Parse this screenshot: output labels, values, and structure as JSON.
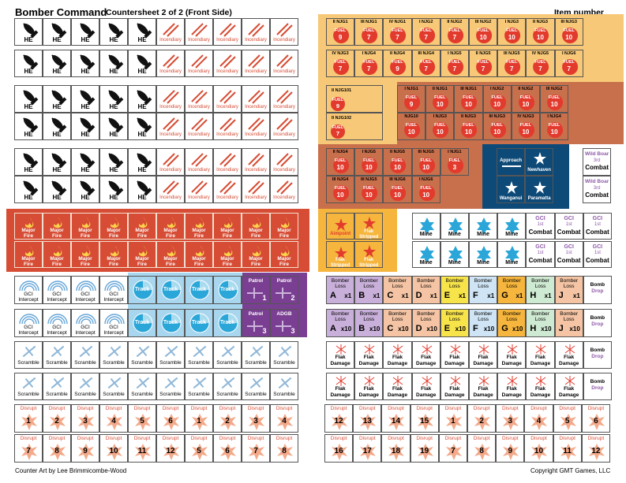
{
  "header": {
    "title": "Bomber Command",
    "subtitle": "Countersheet  2 of 2  (Front Side)",
    "item_number": "Item number"
  },
  "footer": {
    "credit": "Counter Art by Lee Brimmicombe-Wood",
    "copyright": "Copyright GMT Games, LLC"
  },
  "colors": {
    "orange_band": "#f7c877",
    "rust_band": "#c8704c",
    "navy_band": "#0e4a78",
    "red_band": "#d64c34",
    "light_blue_band": "#a8d6ee",
    "purple_band": "#7a3f92",
    "flak_orange": "#f6b53c",
    "fuel_red": "#e23b2e",
    "mine_cyan": "#2aa6d8",
    "gci_purple": "#8e5aa8",
    "disrupt_pink": "#f3a98a"
  },
  "left": {
    "bomb_rows": [
      [
        {
          "t": "he",
          "label": "HE"
        },
        {
          "t": "he",
          "label": "HE"
        },
        {
          "t": "he",
          "label": "HE"
        },
        {
          "t": "he",
          "label": "HE"
        },
        {
          "t": "he",
          "label": "HE"
        },
        {
          "t": "inc",
          "label": "Incendiary"
        },
        {
          "t": "inc",
          "label": "Incendiary"
        },
        {
          "t": "inc",
          "label": "Incendiary"
        },
        {
          "t": "inc",
          "label": "Incendiary"
        },
        {
          "t": "inc",
          "label": "Incendiary"
        }
      ],
      [
        {
          "t": "he",
          "label": "HE"
        },
        {
          "t": "he",
          "label": "HE"
        },
        {
          "t": "he",
          "label": "HE"
        },
        {
          "t": "he",
          "label": "HE"
        },
        {
          "t": "he",
          "label": "HE"
        },
        {
          "t": "inc",
          "label": "Incendiary"
        },
        {
          "t": "inc",
          "label": "Incendiary"
        },
        {
          "t": "inc",
          "label": "Incendiary"
        },
        {
          "t": "inc",
          "label": "Incendiary"
        },
        {
          "t": "inc",
          "label": "Incendiary"
        }
      ],
      [
        {
          "t": "he",
          "label": "HE"
        },
        {
          "t": "he",
          "label": "HE"
        },
        {
          "t": "he",
          "label": "HE"
        },
        {
          "t": "he",
          "label": "HE"
        },
        {
          "t": "he",
          "label": "HE"
        },
        {
          "t": "inc",
          "label": "Incendiary"
        },
        {
          "t": "inc",
          "label": "Incendiary"
        },
        {
          "t": "inc",
          "label": "Incendiary"
        },
        {
          "t": "inc",
          "label": "Incendiary"
        },
        {
          "t": "inc",
          "label": "Incendiary"
        }
      ],
      [
        {
          "t": "he",
          "label": "HE"
        },
        {
          "t": "he",
          "label": "HE"
        },
        {
          "t": "he",
          "label": "HE"
        },
        {
          "t": "he",
          "label": "HE"
        },
        {
          "t": "he",
          "label": "HE"
        },
        {
          "t": "inc",
          "label": "Incendiary"
        },
        {
          "t": "inc",
          "label": "Incendiary"
        },
        {
          "t": "inc",
          "label": "Incendiary"
        },
        {
          "t": "inc",
          "label": "Incendiary"
        },
        {
          "t": "inc",
          "label": "Incendiary"
        }
      ],
      [
        {
          "t": "he",
          "label": "HE"
        },
        {
          "t": "he",
          "label": "HE"
        },
        {
          "t": "he",
          "label": "HE"
        },
        {
          "t": "he",
          "label": "HE"
        },
        {
          "t": "he",
          "label": "HE"
        },
        {
          "t": "inc",
          "label": "Incendiary"
        },
        {
          "t": "inc",
          "label": "Incendiary"
        },
        {
          "t": "inc",
          "label": "Incendiary"
        },
        {
          "t": "inc",
          "label": "Incendiary"
        },
        {
          "t": "inc",
          "label": "Incendiary"
        }
      ],
      [
        {
          "t": "he",
          "label": "HE"
        },
        {
          "t": "he",
          "label": "HE"
        },
        {
          "t": "he",
          "label": "HE"
        },
        {
          "t": "he",
          "label": "HE"
        },
        {
          "t": "he",
          "label": "HE"
        },
        {
          "t": "inc",
          "label": "Incendiary"
        },
        {
          "t": "inc",
          "label": "Incendiary"
        },
        {
          "t": "inc",
          "label": "Incendiary"
        },
        {
          "t": "inc",
          "label": "Incendiary"
        },
        {
          "t": "inc",
          "label": "Incendiary"
        }
      ]
    ],
    "fire_label": [
      "Major",
      "Fire"
    ],
    "gci_row1": [
      "GCI",
      "Intercept"
    ],
    "gci_row2": [
      "GCI",
      "Intercept"
    ],
    "track_label": "Track",
    "patrols": [
      {
        "label": "Patrol",
        "num": "1"
      },
      {
        "label": "Patrol",
        "num": "2"
      },
      {
        "label": "Patrol",
        "num": "3"
      },
      {
        "label": "ADGB",
        "num": "3"
      }
    ],
    "scramble_label": "Scramble",
    "disrupt_label": "Disrupt",
    "disrupt_row1": [
      "1",
      "2",
      "3",
      "4",
      "5",
      "6",
      "1",
      "2",
      "3",
      "4"
    ],
    "disrupt_row2": [
      "7",
      "8",
      "9",
      "10",
      "11",
      "12",
      "5",
      "6",
      "7",
      "8"
    ]
  },
  "right": {
    "njg_row1": [
      {
        "unit": "II NJG1",
        "fuel": "9"
      },
      {
        "unit": "III NJG1",
        "fuel": "7"
      },
      {
        "unit": "IV NJG1",
        "fuel": "7"
      },
      {
        "unit": "I NJG2",
        "fuel": "7"
      },
      {
        "unit": "II NJG2",
        "fuel": "7"
      },
      {
        "unit": "III NJG2",
        "fuel": "10"
      },
      {
        "unit": "I NJG3",
        "fuel": "10"
      },
      {
        "unit": "II NJG3",
        "fuel": "10"
      },
      {
        "unit": "III NJG3",
        "fuel": "10"
      }
    ],
    "njg_row2": [
      {
        "unit": "IV NJG3",
        "fuel": "7"
      },
      {
        "unit": "I NJG4",
        "fuel": "7"
      },
      {
        "unit": "II NJG4",
        "fuel": "9"
      },
      {
        "unit": "III NJG4",
        "fuel": "7"
      },
      {
        "unit": "I NJG5",
        "fuel": "7"
      },
      {
        "unit": "II NJG5",
        "fuel": "7"
      },
      {
        "unit": "III NJG5",
        "fuel": "7"
      },
      {
        "unit": "IV NJG5",
        "fuel": "7"
      },
      {
        "unit": "I NJG6",
        "fuel": "7"
      }
    ],
    "njg_row3": [
      {
        "unit": "II NJG101",
        "fuel": "9",
        "big": true
      },
      {
        "unit": "I NJG1",
        "fuel": "9"
      },
      {
        "unit": "II NJG1",
        "fuel": "10"
      },
      {
        "unit": "III NJG1",
        "fuel": "10"
      },
      {
        "unit": "I NJG2",
        "fuel": "10"
      },
      {
        "unit": "II NJG2",
        "fuel": "10"
      },
      {
        "unit": "III NJG2",
        "fuel": "10"
      }
    ],
    "njg_row4": [
      {
        "unit": "II NJG102",
        "fuel": "7",
        "big": true
      },
      {
        "unit": "NJG10",
        "fuel": "10"
      },
      {
        "unit": "I NJG3",
        "fuel": "10"
      },
      {
        "unit": "II NJG3",
        "fuel": "10"
      },
      {
        "unit": "III NJG3",
        "fuel": "10"
      },
      {
        "unit": "IV NJG3",
        "fuel": "10"
      },
      {
        "unit": "I NJG4",
        "fuel": "10"
      }
    ],
    "njg_row5": [
      {
        "unit": "II NJG4",
        "fuel": "10"
      },
      {
        "unit": "I NJG5",
        "fuel": "10"
      },
      {
        "unit": "II NJG5",
        "fuel": "10"
      },
      {
        "unit": "III NJG5",
        "fuel": "10"
      },
      {
        "unit": "I NJG1",
        "fuel": "3"
      }
    ],
    "njg_row6": [
      {
        "unit": "III NJG4",
        "fuel": "10"
      },
      {
        "unit": "III NJG5",
        "fuel": "10"
      },
      {
        "unit": "III NJG6",
        "fuel": "10"
      },
      {
        "unit": "I NJG6",
        "fuel": "10"
      }
    ],
    "fuel_label": "FUEL",
    "navy": {
      "approach": "Approach",
      "newhaven": "Newhaven",
      "wanganui": "Wanganui",
      "paramatta": "Paramatta"
    },
    "wild_boar": {
      "title": "Wild Boar",
      "sub": "3rd",
      "combat": "Combat"
    },
    "aimpoint": "Aimpoint",
    "flak_stripped": [
      "Flak",
      "Stripped"
    ],
    "mine_label": "Mine",
    "gci_combat": {
      "title": "GCI",
      "sub": "1st",
      "combat": "Combat"
    },
    "bomber_loss_label": [
      "Bomber",
      "Loss"
    ],
    "loss_letters": [
      "A",
      "B",
      "C",
      "D",
      "E",
      "F",
      "G",
      "H",
      "J"
    ],
    "loss_x1": "x1",
    "loss_x10": "x10",
    "loss_colors": [
      "#c9b0da",
      "#c9b0da",
      "#f4c4a4",
      "#f4c4a4",
      "#f7e34a",
      "#cfe4f4",
      "#f6b53c",
      "#cfead2",
      "#f4c4a4"
    ],
    "bomb_drop": [
      "Bomb",
      "Drop"
    ],
    "flak_damage": [
      "Flak",
      "Damage"
    ],
    "disrupt_row1": [
      "12",
      "13",
      "14",
      "15",
      "1",
      "2",
      "3",
      "4",
      "5",
      "6"
    ],
    "disrupt_row2": [
      "16",
      "17",
      "18",
      "19",
      "7",
      "8",
      "9",
      "10",
      "11",
      "12"
    ]
  }
}
